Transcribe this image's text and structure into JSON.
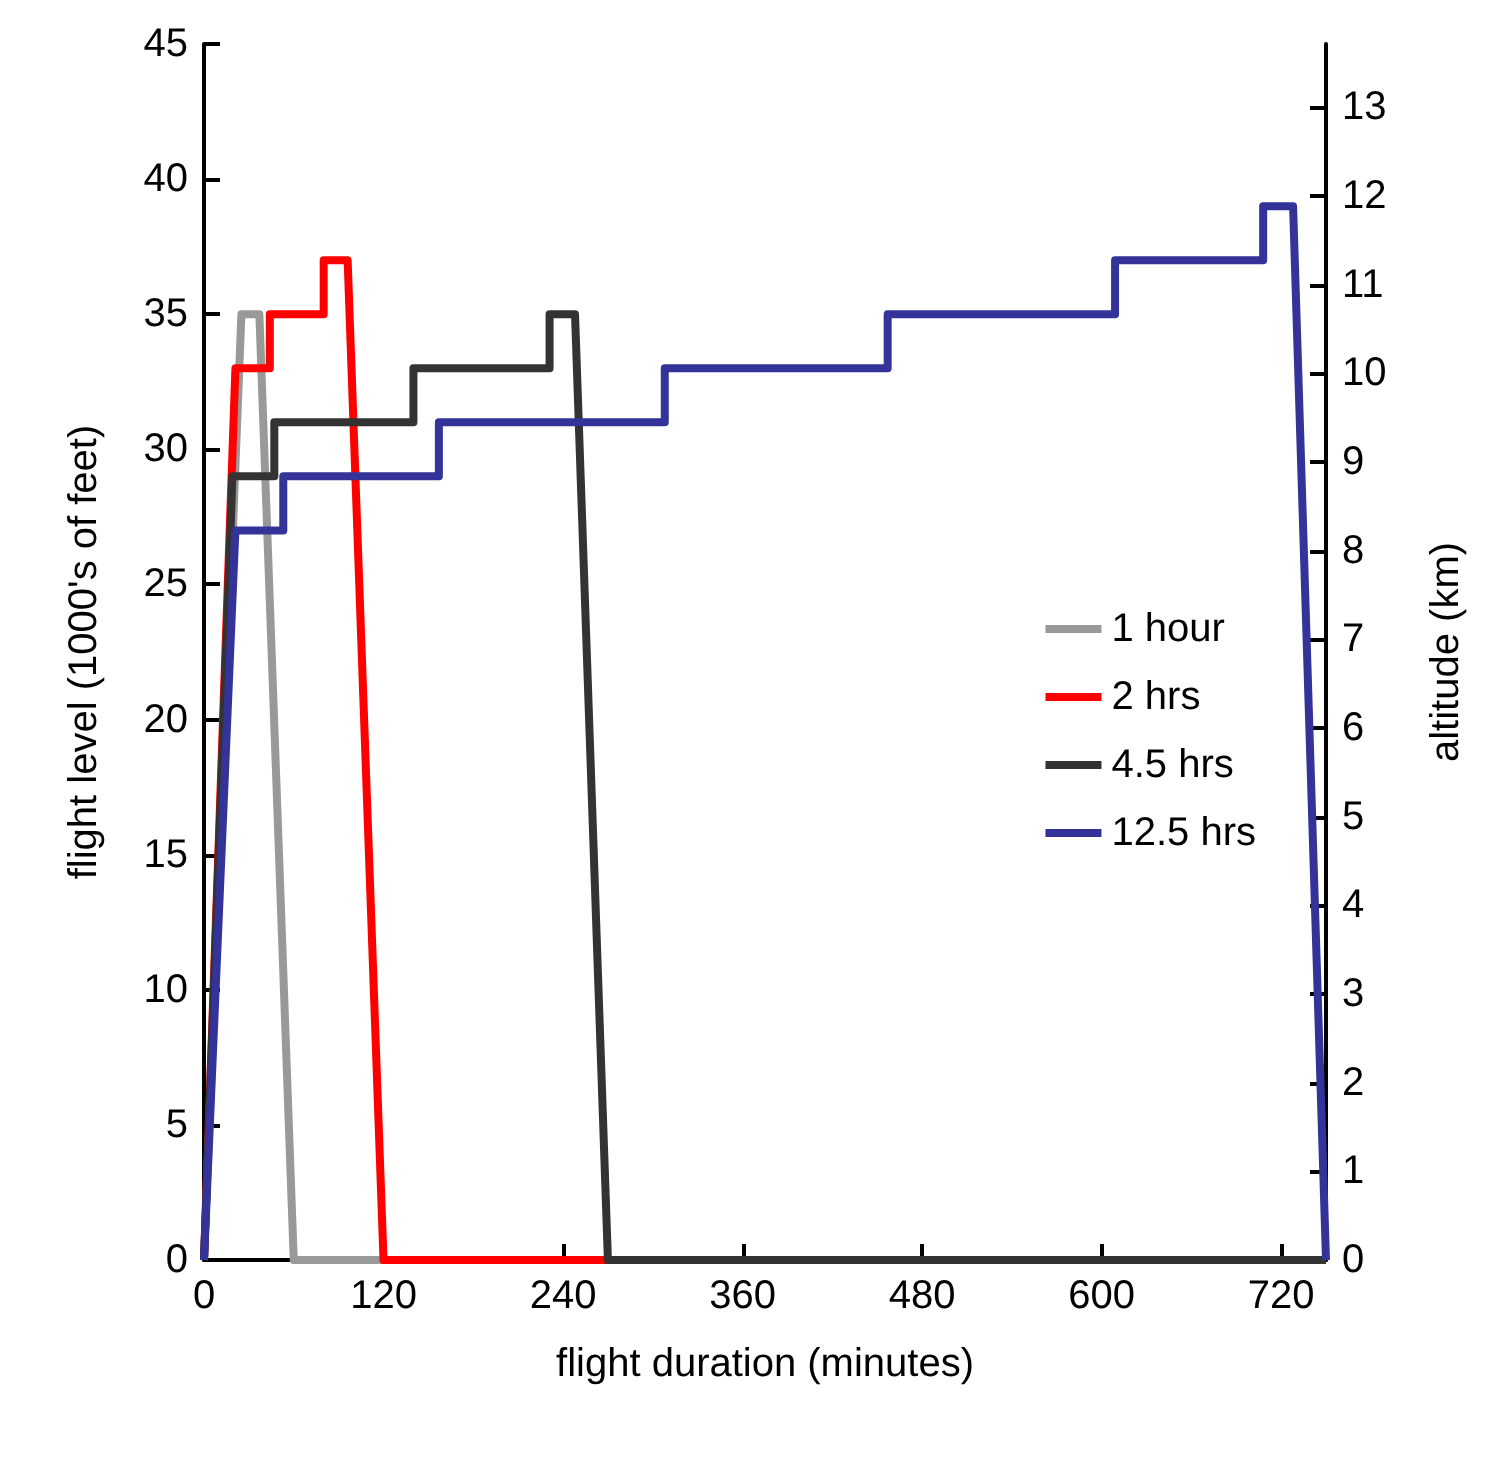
{
  "chart_data": {
    "type": "line",
    "xlabel": "flight duration (minutes)",
    "ylabel": "flight level (1000's of feet)",
    "y2label": "altitude (km)",
    "xlim": [
      0,
      750
    ],
    "xticks": [
      0,
      120,
      240,
      360,
      480,
      600,
      720
    ],
    "ylim": [
      0,
      45
    ],
    "yticks": [
      0,
      5,
      10,
      15,
      20,
      25,
      30,
      35,
      40,
      45
    ],
    "y2lim": [
      0,
      13.716
    ],
    "y2ticks": [
      0,
      1,
      2,
      3,
      4,
      5,
      6,
      7,
      8,
      9,
      10,
      11,
      12,
      13
    ],
    "legend": "right",
    "grid": false,
    "marker": "none",
    "line_style": "solid",
    "series": [
      {
        "name": "1 hour",
        "color": "#999999",
        "x": [
          0,
          25,
          37,
          60,
          120
        ],
        "values": [
          0,
          35,
          35,
          0,
          0
        ]
      },
      {
        "name": "2 hrs",
        "color": "#ff0000",
        "x": [
          0,
          21,
          44,
          44,
          80,
          80,
          96,
          120,
          270
        ],
        "values": [
          0,
          33,
          33,
          35,
          35,
          37,
          37,
          0,
          0
        ]
      },
      {
        "name": "4.5 hrs",
        "color": "#333333",
        "x": [
          0,
          19,
          47,
          47,
          140,
          140,
          231,
          231,
          248,
          270,
          750
        ],
        "values": [
          0,
          29,
          29,
          31,
          31,
          33,
          33,
          35,
          35,
          0,
          0
        ]
      },
      {
        "name": "12.5 hrs",
        "color": "#333399",
        "x": [
          0,
          21,
          53,
          53,
          157,
          157,
          308,
          308,
          457,
          457,
          609,
          609,
          708,
          708,
          728,
          750
        ],
        "values": [
          0,
          27,
          27,
          29,
          29,
          31,
          31,
          33,
          33,
          35,
          35,
          37,
          37,
          39,
          39,
          0
        ]
      }
    ]
  }
}
